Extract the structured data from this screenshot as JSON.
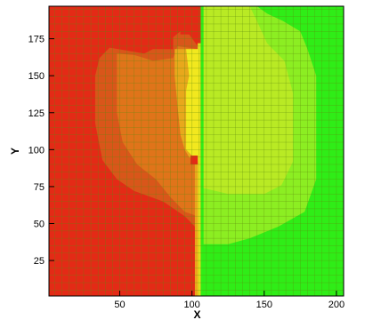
{
  "chart_data": {
    "type": "heatmap",
    "title": "",
    "xlabel": "X",
    "ylabel": "Y",
    "xlim": [
      1,
      205
    ],
    "ylim": [
      1,
      197
    ],
    "xticks": [
      50,
      100,
      150,
      200
    ],
    "yticks": [
      25,
      50,
      75,
      100,
      125,
      150,
      175
    ],
    "grid": true,
    "grid_spacing": 5,
    "colors": {
      "red": "#e42a16",
      "dark_orange": "#d9561a",
      "orange": "#e0741a",
      "yellow_orange": "#e8a81c",
      "yellow": "#f2e81e",
      "yellow_green": "#b9ea24",
      "light_green": "#8cee22",
      "green": "#2fed17",
      "grid": "#5f8a10"
    },
    "regions": [
      {
        "fill": "green",
        "polygon": [
          [
            107,
            1
          ],
          [
            205,
            1
          ],
          [
            205,
            197
          ],
          [
            107,
            197
          ]
        ]
      },
      {
        "fill": "light_green",
        "polygon": [
          [
            108,
            36
          ],
          [
            125,
            36
          ],
          [
            140,
            40
          ],
          [
            160,
            48
          ],
          [
            178,
            58
          ],
          [
            186,
            80
          ],
          [
            186,
            150
          ],
          [
            180,
            168
          ],
          [
            175,
            180
          ],
          [
            163,
            187
          ],
          [
            152,
            192
          ],
          [
            145,
            197
          ],
          [
            108,
            197
          ]
        ]
      },
      {
        "fill": "yellow_green",
        "polygon": [
          [
            108,
            74
          ],
          [
            125,
            70
          ],
          [
            150,
            70
          ],
          [
            162,
            76
          ],
          [
            170,
            92
          ],
          [
            170,
            138
          ],
          [
            164,
            160
          ],
          [
            152,
            172
          ],
          [
            145,
            187
          ],
          [
            140,
            197
          ],
          [
            108,
            197
          ]
        ]
      },
      {
        "fill": "red",
        "polygon": [
          [
            1,
            1
          ],
          [
            104,
            1
          ],
          [
            104,
            197
          ],
          [
            1,
            197
          ]
        ]
      },
      {
        "fill": "dark_orange",
        "polygon": [
          [
            41,
            197
          ],
          [
            92,
            197
          ],
          [
            92,
            180
          ],
          [
            87,
            176
          ],
          [
            87,
            168
          ],
          [
            73,
            168
          ],
          [
            67,
            165
          ],
          [
            55,
            167
          ],
          [
            43,
            169
          ],
          [
            36,
            162
          ],
          [
            33,
            150
          ],
          [
            33,
            118
          ],
          [
            38,
            93
          ],
          [
            48,
            80
          ],
          [
            60,
            72
          ],
          [
            80,
            65
          ],
          [
            95,
            55
          ],
          [
            104,
            46
          ],
          [
            104,
            170
          ],
          [
            98,
            178
          ],
          [
            92,
            178
          ],
          [
            92,
            197
          ]
        ]
      },
      {
        "fill": "orange",
        "polygon": [
          [
            48,
            165
          ],
          [
            60,
            164
          ],
          [
            67,
            162
          ],
          [
            73,
            160
          ],
          [
            87,
            162
          ],
          [
            90,
            170
          ],
          [
            104,
            168
          ],
          [
            104,
            55
          ],
          [
            95,
            58
          ],
          [
            85,
            68
          ],
          [
            75,
            80
          ],
          [
            62,
            90
          ],
          [
            52,
            105
          ],
          [
            48,
            125
          ]
        ]
      },
      {
        "fill": "yellow_orange",
        "polygon": [
          [
            88,
            168
          ],
          [
            104,
            168
          ],
          [
            104,
            92
          ],
          [
            98,
            95
          ],
          [
            95,
            100
          ],
          [
            92,
            110
          ],
          [
            90,
            130
          ],
          [
            88,
            150
          ]
        ]
      },
      {
        "fill": "yellow",
        "polygon": [
          [
            96,
            168
          ],
          [
            104,
            168
          ],
          [
            104,
            172
          ],
          [
            106,
            172
          ],
          [
            106,
            1
          ],
          [
            104,
            1
          ],
          [
            104,
            92
          ],
          [
            96,
            100
          ],
          [
            96,
            140
          ],
          [
            98,
            150
          ]
        ]
      },
      {
        "fill": "green",
        "polygon": [
          [
            106,
            1
          ],
          [
            108,
            1
          ],
          [
            108,
            197
          ],
          [
            106,
            197
          ]
        ]
      },
      {
        "fill": "yellow_orange",
        "polygon": [
          [
            102,
            92
          ],
          [
            104,
            92
          ],
          [
            104,
            1
          ],
          [
            102,
            1
          ]
        ]
      },
      {
        "fill": "red",
        "polygon": [
          [
            92,
            178
          ],
          [
            104,
            178
          ],
          [
            104,
            197
          ],
          [
            92,
            197
          ]
        ]
      },
      {
        "fill": "red",
        "polygon": [
          [
            99,
            90
          ],
          [
            104,
            90
          ],
          [
            104,
            96
          ],
          [
            99,
            96
          ]
        ]
      }
    ]
  }
}
